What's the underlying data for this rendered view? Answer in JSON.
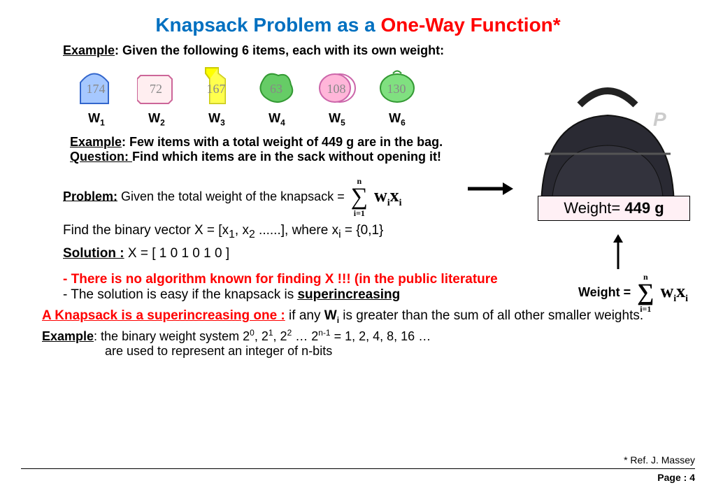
{
  "title": {
    "blue": "Knapsack Problem as a ",
    "red": "One-Way Function*"
  },
  "example_intro": {
    "label": "Example",
    "text": ": Given the following 6 items, each with its own weight:"
  },
  "items": [
    {
      "weight": "174",
      "label": "W",
      "sub": "1",
      "fill": "#a6c8ff",
      "stroke": "#3366cc"
    },
    {
      "weight": "72",
      "label": "W",
      "sub": "2",
      "fill": "#ffeef0",
      "stroke": "#cc6699"
    },
    {
      "weight": "167",
      "label": "W",
      "sub": "3",
      "fill": "#ffff00",
      "stroke": "#cccc00"
    },
    {
      "weight": "63",
      "label": "W",
      "sub": "4",
      "fill": "#66cc66",
      "stroke": "#339933"
    },
    {
      "weight": "108",
      "label": "W",
      "sub": "5",
      "fill": "#ffb6d9",
      "stroke": "#cc66aa"
    },
    {
      "weight": "130",
      "label": "W",
      "sub": "6",
      "fill": "#80e080",
      "stroke": "#339933"
    }
  ],
  "example2": {
    "label": "Example",
    "text": ": Few items with a total weight  of 449 g are in the bag."
  },
  "question": {
    "label": "Question: ",
    "text": "Find which items are in the sack without opening it!"
  },
  "bag_weight": {
    "prefix": "Weight= ",
    "value": "449 g"
  },
  "problem": {
    "label": "Problem:",
    "text": "   Given the total weight of the knapsack = ",
    "find": "Find  the binary vector X = [x",
    "find2": ", x",
    "find3": " ......],   where x",
    "find4": " = {0,1}",
    "solution_label": "Solution  :",
    "solution": "   X = [ 1 0 1 0 1 0 ]"
  },
  "sum": {
    "top": "n",
    "bot": "i=1",
    "term1": "w",
    "sub1": "i",
    "term2": "x",
    "sub2": "i"
  },
  "red1": "- There is no algorithm known for finding X  !!! (in the public literature",
  "black1_pre": "- The solution is easy if the knapsack is ",
  "black1_bold": "superincreasing",
  "super": {
    "label": "A Knapsack is a superincreasing one :",
    "text1": "  if any  ",
    "wi": "W",
    "wisub": "i",
    "text2": "  is greater than the sum of all other smaller weights."
  },
  "example_bin": {
    "label": "Example",
    "text1": ": the binary weight system 2",
    "s0": "0",
    "c": ", 2",
    "s1": "1",
    "s2": "2",
    "dots": " … 2",
    "sn": "n-1",
    "tail": "  = 1, 2, 4, 8, 16 …",
    "line2": "are used to represent an integer of n-bits"
  },
  "weight_eq_label": "Weight = ",
  "footer": {
    "ref": "* Ref.  J. Massey",
    "page": "Page :  4"
  }
}
